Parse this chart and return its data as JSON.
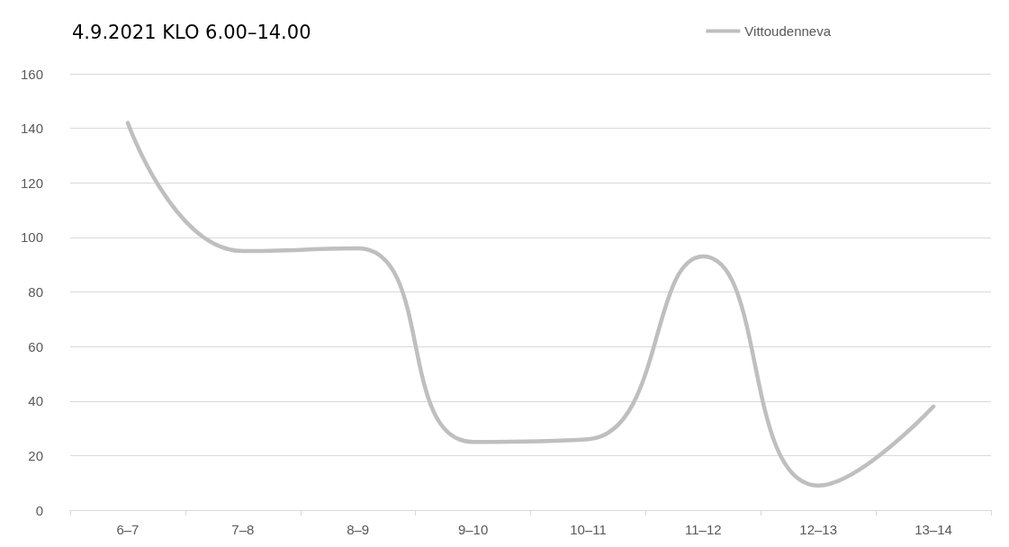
{
  "chart_data": {
    "type": "line",
    "title": "4.9.2021 KLO 6.00–14.00",
    "categories": [
      "6–7",
      "7–8",
      "8–9",
      "9–10",
      "10–11",
      "11–12",
      "12–13",
      "13–14"
    ],
    "series": [
      {
        "name": "Vittoudenneva",
        "color": "#bfbfbf",
        "values": [
          142,
          95,
          96,
          25,
          26,
          93,
          9,
          38
        ]
      }
    ],
    "ylim": [
      0,
      160
    ],
    "yticks": [
      0,
      20,
      40,
      60,
      80,
      100,
      120,
      140,
      160
    ],
    "grid": "y",
    "legend": "top right",
    "marker": "none",
    "line_style": "solid"
  }
}
